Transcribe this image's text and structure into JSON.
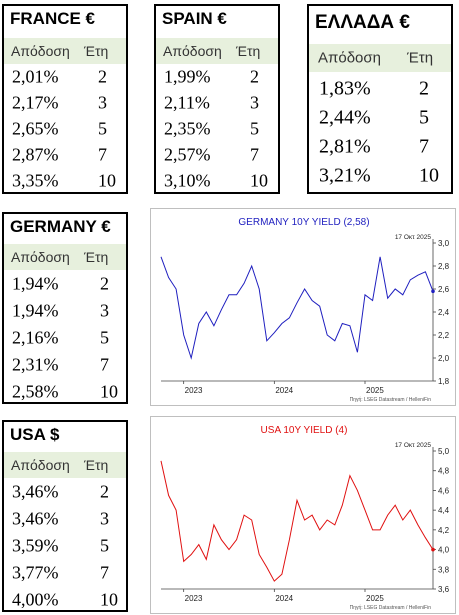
{
  "tables": {
    "france": {
      "title": "FRANCE €",
      "col_yield": "Απόδοση",
      "col_years": "Έτη",
      "rows": [
        {
          "yield": "2,01%",
          "years": "2"
        },
        {
          "yield": "2,17%",
          "years": "3"
        },
        {
          "yield": "2,65%",
          "years": "5"
        },
        {
          "yield": "2,87%",
          "years": "7"
        },
        {
          "yield": "3,35%",
          "years": "10"
        }
      ]
    },
    "spain": {
      "title": "SPAIN €",
      "col_yield": "Απόδοση",
      "col_years": "Έτη",
      "rows": [
        {
          "yield": "1,99%",
          "years": "2"
        },
        {
          "yield": "2,11%",
          "years": "3"
        },
        {
          "yield": "2,35%",
          "years": "5"
        },
        {
          "yield": "2,57%",
          "years": "7"
        },
        {
          "yield": "3,10%",
          "years": "10"
        }
      ]
    },
    "greece": {
      "title": "ΕΛΛΑΔΑ €",
      "col_yield": "Απόδοση",
      "col_years": "Έτη",
      "rows": [
        {
          "yield": "1,83%",
          "years": "2"
        },
        {
          "yield": "2,44%",
          "years": "5"
        },
        {
          "yield": "2,81%",
          "years": "7"
        },
        {
          "yield": "3,21%",
          "years": "10"
        }
      ]
    },
    "germany": {
      "title": "GERMANY €",
      "col_yield": "Απόδοση",
      "col_years": "Έτη",
      "rows": [
        {
          "yield": "1,94%",
          "years": "2"
        },
        {
          "yield": "1,94%",
          "years": "3"
        },
        {
          "yield": "2,16%",
          "years": "5"
        },
        {
          "yield": "2,31%",
          "years": "7"
        },
        {
          "yield": "2,58%",
          "years": "10"
        }
      ]
    },
    "usa": {
      "title": "USA $",
      "col_yield": "Απόδοση",
      "col_years": "Έτη",
      "rows": [
        {
          "yield": "3,46%",
          "years": "2"
        },
        {
          "yield": "3,46%",
          "years": "3"
        },
        {
          "yield": "3,59%",
          "years": "5"
        },
        {
          "yield": "3,77%",
          "years": "7"
        },
        {
          "yield": "4,00%",
          "years": "10"
        }
      ]
    }
  },
  "chart_data": [
    {
      "type": "line",
      "title": "GERMANY 10Y YIELD  (2,58)",
      "date_label": "17 Οκτ 2025",
      "source": "Πηγή: LSEG Datastream / HelleniFin",
      "color": "#1f1fbf",
      "xlim": [
        "2022-10",
        "2025-10"
      ],
      "ylim": [
        1.8,
        3.0
      ],
      "yticks": [
        "1,8",
        "2,0",
        "2,2",
        "2,4",
        "2,6",
        "2,8",
        "3,0"
      ],
      "xticks": [
        {
          "label": "2023",
          "x": "2023-01"
        },
        {
          "label": "2024",
          "x": "2024-01"
        },
        {
          "label": "2025",
          "x": "2025-01"
        }
      ],
      "last_value": 2.58,
      "series": [
        {
          "x": [
            "2022-10",
            "2022-11",
            "2022-12",
            "2023-01",
            "2023-02",
            "2023-03",
            "2023-04",
            "2023-05",
            "2023-06",
            "2023-07",
            "2023-08",
            "2023-09",
            "2023-10",
            "2023-11",
            "2023-12",
            "2024-01",
            "2024-02",
            "2024-03",
            "2024-04",
            "2024-05",
            "2024-06",
            "2024-07",
            "2024-08",
            "2024-09",
            "2024-10",
            "2024-11",
            "2024-12",
            "2025-01",
            "2025-02",
            "2025-03",
            "2025-04",
            "2025-05",
            "2025-06",
            "2025-07",
            "2025-08",
            "2025-09",
            "2025-10"
          ],
          "values": [
            2.88,
            2.7,
            2.6,
            2.2,
            2.0,
            2.3,
            2.4,
            2.28,
            2.42,
            2.55,
            2.55,
            2.65,
            2.8,
            2.6,
            2.15,
            2.22,
            2.3,
            2.35,
            2.48,
            2.6,
            2.5,
            2.45,
            2.2,
            2.15,
            2.3,
            2.28,
            2.05,
            2.55,
            2.5,
            2.88,
            2.52,
            2.6,
            2.55,
            2.68,
            2.72,
            2.75,
            2.58
          ]
        }
      ]
    },
    {
      "type": "line",
      "title": "USA 10Y YIELD  (4)",
      "date_label": "17 Οκτ 2025",
      "source": "Πηγή: LSEG Datastream / HelleniFin",
      "color": "#e01010",
      "xlim": [
        "2022-10",
        "2025-10"
      ],
      "ylim": [
        3.6,
        5.0
      ],
      "yticks": [
        "3,6",
        "3,8",
        "4,0",
        "4,2",
        "4,4",
        "4,6",
        "4,8",
        "5,0"
      ],
      "xticks": [
        {
          "label": "2023",
          "x": "2023-01"
        },
        {
          "label": "2024",
          "x": "2024-01"
        },
        {
          "label": "2025",
          "x": "2025-01"
        }
      ],
      "last_value": 4.0,
      "series": [
        {
          "x": [
            "2022-10",
            "2022-11",
            "2022-12",
            "2023-01",
            "2023-02",
            "2023-03",
            "2023-04",
            "2023-05",
            "2023-06",
            "2023-07",
            "2023-08",
            "2023-09",
            "2023-10",
            "2023-11",
            "2023-12",
            "2024-01",
            "2024-02",
            "2024-03",
            "2024-04",
            "2024-05",
            "2024-06",
            "2024-07",
            "2024-08",
            "2024-09",
            "2024-10",
            "2024-11",
            "2024-12",
            "2025-01",
            "2025-02",
            "2025-03",
            "2025-04",
            "2025-05",
            "2025-06",
            "2025-07",
            "2025-08",
            "2025-09",
            "2025-10"
          ],
          "values": [
            4.9,
            4.55,
            4.4,
            3.88,
            3.95,
            4.05,
            3.9,
            4.25,
            4.1,
            4.0,
            4.1,
            4.35,
            4.3,
            3.95,
            3.82,
            3.68,
            3.75,
            4.1,
            4.5,
            4.3,
            4.35,
            4.2,
            4.3,
            4.25,
            4.45,
            4.75,
            4.6,
            4.4,
            4.2,
            4.2,
            4.35,
            4.45,
            4.3,
            4.4,
            4.25,
            4.12,
            4.0
          ]
        }
      ]
    }
  ]
}
